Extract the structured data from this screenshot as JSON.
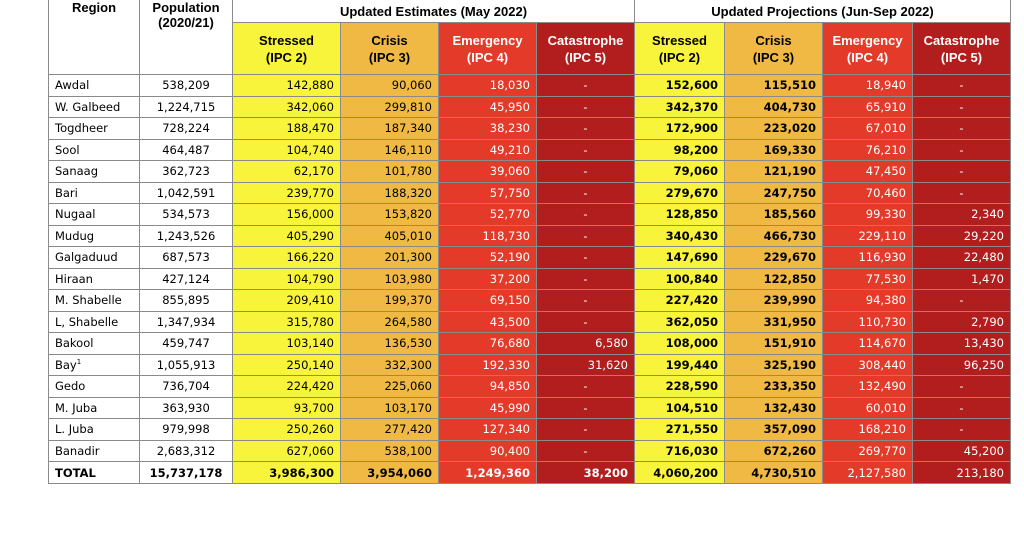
{
  "headers": {
    "region": "Region",
    "population": "Population (2020/21)",
    "estimates_group": "Updated Estimates (May 2022)",
    "projections_group": "Updated Projections (Jun-Sep 2022)",
    "phases": [
      {
        "name": "Stressed",
        "code": "(IPC 2)"
      },
      {
        "name": "Crisis",
        "code": "(IPC 3)"
      },
      {
        "name": "Emergency",
        "code": "(IPC 4)"
      },
      {
        "name": "Catastrophe",
        "code": "(IPC 5)"
      }
    ]
  },
  "rows": [
    {
      "region": "Awdal",
      "population": "538,209",
      "est": [
        "142,880",
        "90,060",
        "18,030",
        "-"
      ],
      "proj": [
        "152,600",
        "115,510",
        "18,940",
        "-"
      ]
    },
    {
      "region": "W. Galbeed",
      "population": "1,224,715",
      "est": [
        "342,060",
        "299,810",
        "45,950",
        "-"
      ],
      "proj": [
        "342,370",
        "404,730",
        "65,910",
        "-"
      ]
    },
    {
      "region": "Togdheer",
      "population": "728,224",
      "est": [
        "188,470",
        "187,340",
        "38,230",
        "-"
      ],
      "proj": [
        "172,900",
        "223,020",
        "67,010",
        "-"
      ]
    },
    {
      "region": "Sool",
      "population": "464,487",
      "est": [
        "104,740",
        "146,110",
        "49,210",
        "-"
      ],
      "proj": [
        "98,200",
        "169,330",
        "76,210",
        "-"
      ]
    },
    {
      "region": "Sanaag",
      "population": "362,723",
      "est": [
        "62,170",
        "101,780",
        "39,060",
        "-"
      ],
      "proj": [
        "79,060",
        "121,190",
        "47,450",
        "-"
      ]
    },
    {
      "region": "Bari",
      "population": "1,042,591",
      "est": [
        "239,770",
        "188,320",
        "57,750",
        "-"
      ],
      "proj": [
        "279,670",
        "247,750",
        "70,460",
        "-"
      ]
    },
    {
      "region": "Nugaal",
      "population": "534,573",
      "est": [
        "156,000",
        "153,820",
        "52,770",
        "-"
      ],
      "proj": [
        "128,850",
        "185,560",
        "99,330",
        "2,340"
      ]
    },
    {
      "region": "Mudug",
      "population": "1,243,526",
      "est": [
        "405,290",
        "405,010",
        "118,730",
        "-"
      ],
      "proj": [
        "340,430",
        "466,730",
        "229,110",
        "29,220"
      ]
    },
    {
      "region": "Galgaduud",
      "population": "687,573",
      "est": [
        "166,220",
        "201,300",
        "52,190",
        "-"
      ],
      "proj": [
        "147,690",
        "229,670",
        "116,930",
        "22,480"
      ]
    },
    {
      "region": "Hiraan",
      "population": "427,124",
      "est": [
        "104,790",
        "103,980",
        "37,200",
        "-"
      ],
      "proj": [
        "100,840",
        "122,850",
        "77,530",
        "1,470"
      ]
    },
    {
      "region": "M. Shabelle",
      "population": "855,895",
      "est": [
        "209,410",
        "199,370",
        "69,150",
        "-"
      ],
      "proj": [
        "227,420",
        "239,990",
        "94,380",
        "-"
      ]
    },
    {
      "region": "L, Shabelle",
      "population": "1,347,934",
      "est": [
        "315,780",
        "264,580",
        "43,500",
        "-"
      ],
      "proj": [
        "362,050",
        "331,950",
        "110,730",
        "2,790"
      ]
    },
    {
      "region": "Bakool",
      "population": "459,747",
      "est": [
        "103,140",
        "136,530",
        "76,680",
        "6,580"
      ],
      "proj": [
        "108,000",
        "151,910",
        "114,670",
        "13,430"
      ]
    },
    {
      "region": "Bay",
      "region_sup": "1",
      "population": "1,055,913",
      "est": [
        "250,140",
        "332,300",
        "192,330",
        "31,620"
      ],
      "proj": [
        "199,440",
        "325,190",
        "308,440",
        "96,250"
      ]
    },
    {
      "region": "Gedo",
      "population": "736,704",
      "est": [
        "224,420",
        "225,060",
        "94,850",
        "-"
      ],
      "proj": [
        "228,590",
        "233,350",
        "132,490",
        "-"
      ]
    },
    {
      "region": "M. Juba",
      "population": "363,930",
      "est": [
        "93,700",
        "103,170",
        "45,990",
        "-"
      ],
      "proj": [
        "104,510",
        "132,430",
        "60,010",
        "-"
      ]
    },
    {
      "region": "L. Juba",
      "population": "979,998",
      "est": [
        "250,260",
        "277,420",
        "127,340",
        "-"
      ],
      "proj": [
        "271,550",
        "357,090",
        "168,210",
        "-"
      ]
    },
    {
      "region": "Banadir",
      "population": "2,683,312",
      "est": [
        "627,060",
        "538,100",
        "90,400",
        "-"
      ],
      "proj": [
        "716,030",
        "672,260",
        "269,770",
        "45,200"
      ]
    }
  ],
  "total": {
    "region": "TOTAL",
    "population": "15,737,178",
    "est": [
      "3,986,300",
      "3,954,060",
      "1,249,360",
      "38,200"
    ],
    "proj": [
      "4,060,200",
      "4,730,510",
      "2,127,580",
      "213,180"
    ]
  }
}
